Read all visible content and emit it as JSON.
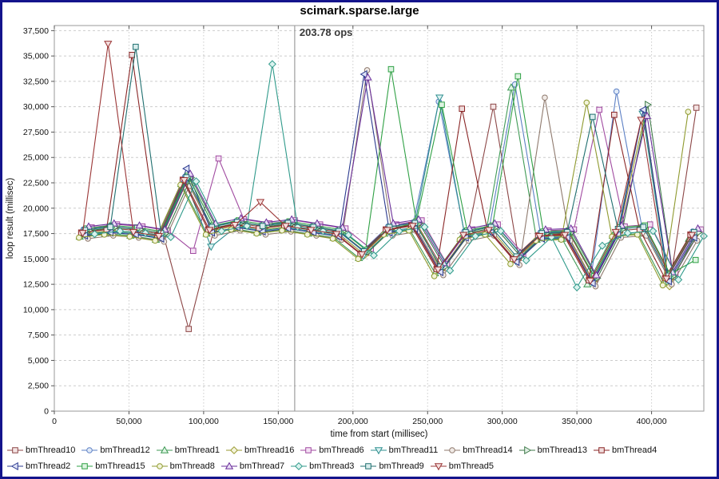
{
  "chart_data": {
    "type": "line",
    "title": "scimark.sparse.large",
    "annotation": {
      "text": "203.78 ops",
      "x": 161000
    },
    "xlabel": "time from start (millisec)",
    "ylabel": "loop result (millisec)",
    "xlim": [
      0,
      435000
    ],
    "ylim": [
      0,
      38000
    ],
    "grid": true,
    "legend_position": "bottom",
    "legend_rows": [
      9,
      7
    ],
    "frame_color": "#14148c",
    "grid_color": "#cccccc",
    "x_ticks": [
      {
        "v": 0,
        "label": "0"
      },
      {
        "v": 50000,
        "label": "50,000"
      },
      {
        "v": 100000,
        "label": "100,000"
      },
      {
        "v": 150000,
        "label": "150,000"
      },
      {
        "v": 200000,
        "label": "200,000"
      },
      {
        "v": 250000,
        "label": "250,000"
      },
      {
        "v": 300000,
        "label": "300,000"
      },
      {
        "v": 350000,
        "label": "350,000"
      },
      {
        "v": 400000,
        "label": "400,000"
      }
    ],
    "y_ticks": [
      {
        "v": 0,
        "label": "0"
      },
      {
        "v": 2500,
        "label": "2,500"
      },
      {
        "v": 5000,
        "label": "5,000"
      },
      {
        "v": 7500,
        "label": "7,500"
      },
      {
        "v": 10000,
        "label": "10,000"
      },
      {
        "v": 12500,
        "label": "12,500"
      },
      {
        "v": 15000,
        "label": "15,000"
      },
      {
        "v": 17500,
        "label": "17,500"
      },
      {
        "v": 20000,
        "label": "20,000"
      },
      {
        "v": 22500,
        "label": "22,500"
      },
      {
        "v": 25000,
        "label": "25,000"
      },
      {
        "v": 27500,
        "label": "27,500"
      },
      {
        "v": 30000,
        "label": "30,000"
      },
      {
        "v": 32500,
        "label": "32,500"
      },
      {
        "v": 35000,
        "label": "35,000"
      },
      {
        "v": 37500,
        "label": "37,500"
      }
    ],
    "x": [
      18000,
      35000,
      52000,
      69000,
      86000,
      103000,
      120000,
      137000,
      154000,
      171000,
      188000,
      205000,
      222000,
      239000,
      256000,
      273000,
      290000,
      307000,
      324000,
      341000,
      358000,
      375000,
      392000,
      409000,
      426000
    ],
    "series": [
      {
        "name": "bmThread10",
        "color": "#8c4646",
        "fill": "#f4e4e4",
        "marker": "square",
        "x_offset": 4000,
        "values": [
          17700,
          18000,
          17800,
          17400,
          8100,
          18000,
          18500,
          18100,
          18400,
          18000,
          17600,
          15600,
          18000,
          18400,
          14100,
          17500,
          30000,
          15100,
          17400,
          17500,
          13000,
          17800,
          18000,
          13200,
          29900
        ]
      },
      {
        "name": "bmThread12",
        "color": "#5b7fc4",
        "fill": "#e0eaf8",
        "marker": "circle",
        "x_offset": 1500,
        "values": [
          17900,
          18200,
          18000,
          17600,
          23100,
          18200,
          18700,
          18300,
          18600,
          18200,
          17800,
          15800,
          18200,
          18600,
          30500,
          17700,
          18200,
          32200,
          17600,
          17700,
          13200,
          31500,
          18200,
          13400,
          17700
        ]
      },
      {
        "name": "bmThread1",
        "color": "#3f9a55",
        "fill": "#e0f4e5",
        "marker": "triangle-up",
        "x_offset": -1000,
        "values": [
          17200,
          17500,
          17300,
          16900,
          22400,
          17500,
          18000,
          17600,
          17900,
          17500,
          17100,
          15100,
          17500,
          17900,
          13600,
          17000,
          17500,
          31900,
          16900,
          17000,
          12500,
          17300,
          17500,
          12700,
          17000
        ]
      },
      {
        "name": "bmThread16",
        "color": "#9a9a30",
        "fill": "#f4f4dc",
        "marker": "diamond",
        "x_offset": 3000,
        "values": [
          17500,
          17800,
          17600,
          17200,
          22700,
          17800,
          18300,
          17900,
          18200,
          17800,
          17400,
          15400,
          17800,
          18700,
          13900,
          17300,
          17800,
          14900,
          17200,
          17300,
          12800,
          17600,
          28900,
          12300,
          17300
        ]
      },
      {
        "name": "bmThread6",
        "color": "#a04aa0",
        "fill": "#f4e0f4",
        "marker": "square",
        "x_offset": 7000,
        "values": [
          18100,
          18400,
          18200,
          17800,
          15800,
          24900,
          18900,
          18500,
          18800,
          18400,
          18000,
          16000,
          18400,
          18800,
          14500,
          17900,
          18400,
          15500,
          17800,
          17900,
          29700,
          18200,
          18400,
          13600,
          17900
        ]
      },
      {
        "name": "bmThread11",
        "color": "#2f8f8f",
        "fill": "#dcf2f2",
        "marker": "triangle-down",
        "x_offset": 2000,
        "values": [
          17400,
          17700,
          17500,
          17100,
          22600,
          16200,
          18200,
          17800,
          18100,
          17700,
          17300,
          15300,
          17700,
          18100,
          30900,
          17200,
          17700,
          14800,
          17100,
          17200,
          12700,
          17500,
          29300,
          12900,
          17200
        ]
      },
      {
        "name": "bmThread14",
        "color": "#8f7a6e",
        "fill": "#f0eae6",
        "marker": "circle",
        "x_offset": 4500,
        "values": [
          17000,
          17300,
          17100,
          16700,
          22200,
          17300,
          17800,
          17400,
          17700,
          17300,
          16900,
          33600,
          17300,
          17700,
          13400,
          16800,
          17300,
          14400,
          30900,
          16800,
          12300,
          17100,
          17300,
          12500,
          16800
        ]
      },
      {
        "name": "bmThread13",
        "color": "#3f7a4a",
        "fill": "#e0eee4",
        "marker": "triangle-right",
        "x_offset": 5500,
        "values": [
          17800,
          18100,
          17900,
          17500,
          23000,
          18100,
          18600,
          18200,
          18500,
          18100,
          17700,
          15700,
          18100,
          18500,
          14200,
          17600,
          18100,
          15200,
          17500,
          17600,
          13100,
          17900,
          30200,
          13300,
          17600
        ]
      },
      {
        "name": "bmThread4",
        "color": "#8a2626",
        "fill": "#f0dcdc",
        "marker": "square",
        "x_offset": 0,
        "values": [
          17600,
          17900,
          35100,
          17300,
          22800,
          17900,
          18400,
          18000,
          18300,
          17900,
          17500,
          15500,
          17900,
          18300,
          14000,
          29800,
          17900,
          15000,
          17300,
          17400,
          12900,
          29200,
          17900,
          13100,
          17400
        ]
      },
      {
        "name": "bmThread2",
        "color": "#2b3a8f",
        "fill": "#dee2f6",
        "marker": "triangle-left",
        "x_offset": 2500,
        "values": [
          17300,
          17600,
          17400,
          17000,
          23900,
          17600,
          18100,
          17700,
          18000,
          17600,
          17200,
          33200,
          17600,
          18000,
          13700,
          17100,
          17600,
          14700,
          17000,
          17100,
          12600,
          17400,
          29700,
          12800,
          17100
        ]
      },
      {
        "name": "bmThread15",
        "color": "#2fa044",
        "fill": "#def4e2",
        "marker": "square",
        "x_offset": 3500,
        "values": [
          18000,
          18300,
          18100,
          17700,
          23200,
          18300,
          18800,
          18400,
          18700,
          18300,
          17900,
          15900,
          33700,
          18700,
          30200,
          17800,
          18300,
          33000,
          17700,
          17800,
          13300,
          18100,
          18300,
          13500,
          14900
        ]
      },
      {
        "name": "bmThread8",
        "color": "#8f9a2f",
        "fill": "#f2f4da",
        "marker": "circle",
        "x_offset": -1500,
        "values": [
          17100,
          17400,
          17200,
          16800,
          22300,
          17400,
          17900,
          17500,
          17800,
          17400,
          17000,
          15000,
          17400,
          17800,
          13300,
          16900,
          17400,
          14500,
          16800,
          16900,
          30400,
          17200,
          17400,
          12400,
          29500
        ]
      },
      {
        "name": "bmThread7",
        "color": "#6a2f9a",
        "fill": "#eadcf6",
        "marker": "triangle-up",
        "x_offset": 5000,
        "values": [
          18200,
          18500,
          18300,
          17900,
          23400,
          18500,
          19000,
          18600,
          18900,
          18500,
          18100,
          32900,
          18500,
          18900,
          14600,
          18000,
          18500,
          15600,
          17900,
          18000,
          13400,
          18300,
          29100,
          13700,
          18000
        ]
      },
      {
        "name": "bmThread3",
        "color": "#2f9a8a",
        "fill": "#daf2ee",
        "marker": "diamond",
        "x_offset": 9000,
        "values": [
          17450,
          17750,
          17550,
          17150,
          22650,
          17750,
          18250,
          34200,
          18150,
          17750,
          17350,
          15350,
          17750,
          18150,
          13850,
          17250,
          17750,
          14850,
          17150,
          12200,
          16300,
          17550,
          17750,
          12950,
          17250
        ]
      },
      {
        "name": "bmThread9",
        "color": "#1f6f6f",
        "fill": "#d8ecec",
        "marker": "square",
        "x_offset": 2500,
        "values": [
          17850,
          18150,
          35900,
          17550,
          23050,
          18150,
          18650,
          18250,
          18550,
          18150,
          17750,
          15750,
          18150,
          18550,
          14250,
          17650,
          18150,
          15250,
          17550,
          17650,
          29000,
          17950,
          18150,
          13350,
          17650
        ]
      },
      {
        "name": "bmThread5",
        "color": "#9a3535",
        "fill": "#f4dede",
        "marker": "triangle-down",
        "x_offset": 1000,
        "values": [
          17550,
          36200,
          17650,
          17250,
          22750,
          17850,
          18350,
          20600,
          18250,
          17850,
          17450,
          15450,
          17850,
          18250,
          13950,
          17350,
          17850,
          14950,
          17250,
          17350,
          12850,
          17650,
          28700,
          13050,
          17350
        ]
      }
    ]
  }
}
